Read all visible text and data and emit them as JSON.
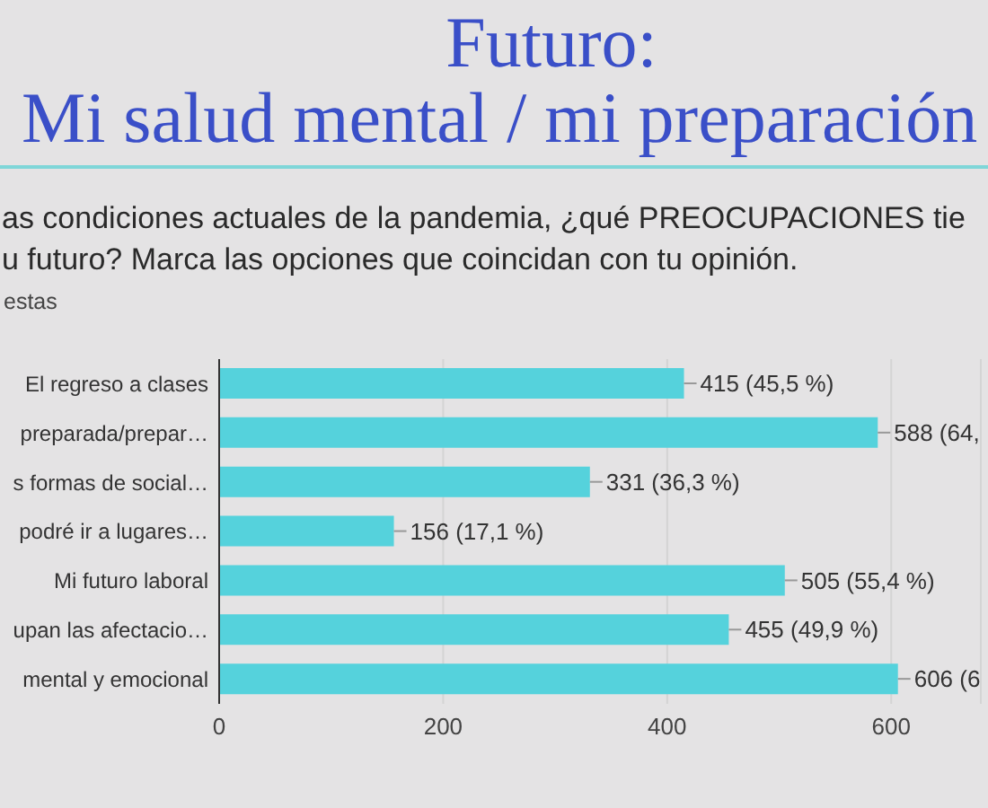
{
  "chart_data": {
    "type": "bar",
    "orientation": "horizontal",
    "title": "Futuro:\nMi salud mental / mi preparación",
    "subtitle": "as condiciones actuales de la pandemia, ¿qué PREOCUPACIONES tie\nu futuro? Marca las opciones que coincidan con tu opinión.",
    "annotations": [
      "estas"
    ],
    "categories": [
      "El regreso a clases",
      "preparada/prepar…",
      "s formas de social…",
      "podré ir a lugares…",
      "Mi futuro laboral",
      "upan las afectacio…",
      "mental y emocional"
    ],
    "values": [
      415,
      588,
      331,
      156,
      505,
      455,
      606
    ],
    "value_labels": [
      "415 (45,5 %)",
      "588 (64,",
      "331 (36,3 %)",
      "156 (17,1 %)",
      "505 (55,4 %)",
      "455 (49,9 %)",
      "606 (6"
    ],
    "color": "#55d2dc",
    "xlim": [
      0,
      680
    ],
    "xticks": [
      0,
      200,
      400,
      600
    ],
    "grid": "x"
  }
}
